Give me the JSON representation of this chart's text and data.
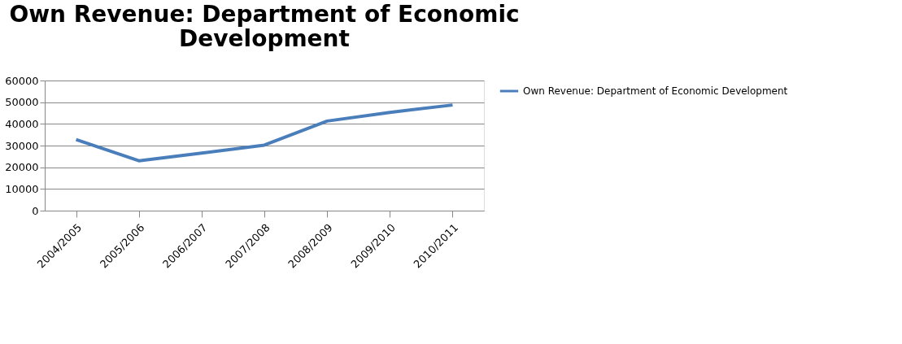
{
  "chart_data": {
    "type": "line",
    "title": "Own Revenue: Department of Economic Development",
    "categories": [
      "2004/2005",
      "2005/2006",
      "2006/2007",
      "2007/2008",
      "2008/2009",
      "2009/2010",
      "2010/2011"
    ],
    "series": [
      {
        "name": "Own Revenue: Department of Economic Development",
        "color": "#4a7ebb",
        "values": [
          32800,
          23000,
          26500,
          30200,
          41300,
          45300,
          48700
        ]
      }
    ],
    "ylim": [
      0,
      60000
    ],
    "yticks": [
      0,
      10000,
      20000,
      30000,
      40000,
      50000,
      60000
    ],
    "grid": "y",
    "legend": "right",
    "marker": "none",
    "line_style": "solid"
  }
}
